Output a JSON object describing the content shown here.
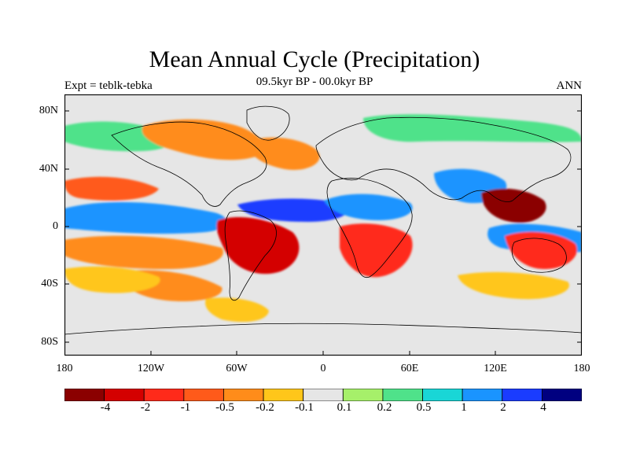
{
  "header": {
    "title": "Mean Annual Cycle (Precipitation)",
    "left_string": "Expt = teblk-tebka",
    "center_string": "09.5kyr BP - 00.0kyr BP",
    "right_string": "ANN"
  },
  "axes": {
    "lat_labels": [
      "80N",
      "40N",
      "0",
      "40S",
      "80S"
    ],
    "lon_labels": [
      "180",
      "120W",
      "60W",
      "0",
      "60E",
      "120E",
      "180"
    ]
  },
  "colorbar": {
    "labels": [
      "-4",
      "-2",
      "-1",
      "-0.5",
      "-0.2",
      "-0.1",
      "0.1",
      "0.2",
      "0.5",
      "1",
      "2",
      "4"
    ],
    "colors": [
      "#8b0000",
      "#d40000",
      "#ff2a1a",
      "#ff5a1a",
      "#ff8c1a",
      "#ffc61a",
      "#e6e6e6",
      "#a6f06a",
      "#4fe28a",
      "#19d6d6",
      "#1a94ff",
      "#1a3cff",
      "#000080"
    ]
  },
  "map": {
    "background_color": "#e6e6e6",
    "features": [
      {
        "name": "precip-anomaly-n-pacific-dry",
        "color": "#ff5a1a"
      },
      {
        "name": "precip-anomaly-itcz-pacific-wet",
        "color": "#1a94ff"
      },
      {
        "name": "precip-anomaly-s-pacific-dry",
        "color": "#ff8c1a"
      },
      {
        "name": "precip-anomaly-south-america-dry",
        "color": "#d40000"
      },
      {
        "name": "precip-anomaly-atlantic-itcz-wet",
        "color": "#1a3cff"
      },
      {
        "name": "precip-anomaly-sahel-wet",
        "color": "#1a94ff"
      },
      {
        "name": "precip-anomaly-southern-africa-dry",
        "color": "#ff2a1a"
      },
      {
        "name": "precip-anomaly-asia-monsoon-wet",
        "color": "#1a94ff"
      },
      {
        "name": "precip-anomaly-maritime-continent-dry",
        "color": "#8b0000"
      },
      {
        "name": "precip-anomaly-australia-dry",
        "color": "#ff2a1a"
      },
      {
        "name": "precip-anomaly-southern-ocean-dry",
        "color": "#ffc61a"
      },
      {
        "name": "precip-anomaly-north-atlantic-mixed",
        "color": "#ff8c1a"
      },
      {
        "name": "precip-anomaly-arctic-wet",
        "color": "#4fe28a"
      }
    ]
  }
}
